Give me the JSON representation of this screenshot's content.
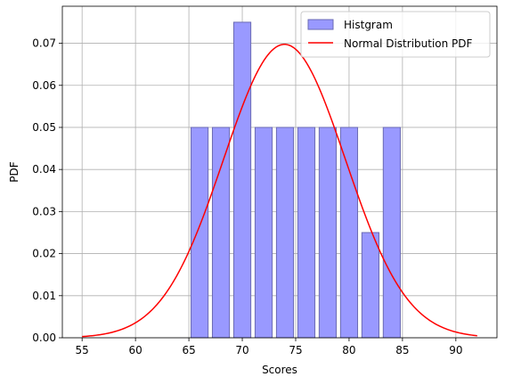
{
  "chart_data": {
    "type": "bar",
    "title": "",
    "xlabel": "Scores",
    "ylabel": "PDF",
    "xlim": [
      53.15,
      93.85
    ],
    "ylim": [
      0,
      0.0788
    ],
    "grid": true,
    "legend_placement": "top-right",
    "xticks": [
      55,
      60,
      65,
      70,
      75,
      80,
      85,
      90
    ],
    "yticks": [
      0.0,
      0.01,
      0.02,
      0.03,
      0.04,
      0.05,
      0.06,
      0.07
    ],
    "xtick_labels": [
      "55",
      "60",
      "65",
      "70",
      "75",
      "80",
      "85",
      "90"
    ],
    "ytick_labels": [
      "0.00",
      "0.01",
      "0.02",
      "0.03",
      "0.04",
      "0.05",
      "0.06",
      "0.07"
    ],
    "histogram": {
      "name": "Histgram",
      "color": "#9999ff",
      "edge_color": "#6b6bb3",
      "bins": [
        {
          "x0": 65.2,
          "x1": 66.8,
          "value": 0.05
        },
        {
          "x0": 67.2,
          "x1": 68.8,
          "value": 0.05
        },
        {
          "x0": 69.2,
          "x1": 70.8,
          "value": 0.075
        },
        {
          "x0": 71.2,
          "x1": 72.8,
          "value": 0.05
        },
        {
          "x0": 73.2,
          "x1": 74.8,
          "value": 0.05
        },
        {
          "x0": 75.2,
          "x1": 76.8,
          "value": 0.05
        },
        {
          "x0": 77.2,
          "x1": 78.8,
          "value": 0.05
        },
        {
          "x0": 79.2,
          "x1": 80.8,
          "value": 0.05
        },
        {
          "x0": 81.2,
          "x1": 82.8,
          "value": 0.025
        },
        {
          "x0": 83.2,
          "x1": 84.8,
          "value": 0.05
        }
      ]
    },
    "curve": {
      "name": "Normal Distribution PDF",
      "color": "#ff0000",
      "mean": 73.95,
      "std": 5.72,
      "x_range": [
        55,
        92
      ]
    }
  }
}
